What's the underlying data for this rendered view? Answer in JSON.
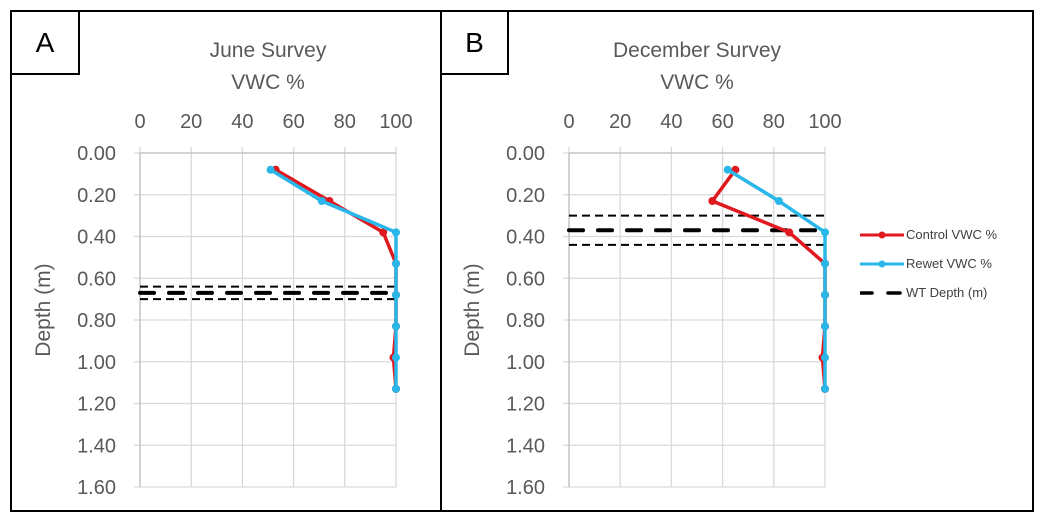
{
  "chart_data": [
    {
      "panel_label": "A",
      "type": "line",
      "title": "June Survey",
      "xlabel": "VWC %",
      "ylabel": "Depth (m)",
      "xlim": [
        0,
        100
      ],
      "ylim": [
        0,
        1.6
      ],
      "y_inverted": true,
      "x_axis_position": "top",
      "grid": true,
      "x_ticks": [
        "0",
        "20",
        "40",
        "60",
        "80",
        "100"
      ],
      "y_ticks": [
        "0.00",
        "0.20",
        "0.40",
        "0.60",
        "0.80",
        "1.00",
        "1.20",
        "1.40",
        "1.60"
      ],
      "series": [
        {
          "name": "Control VWC %",
          "color": "#e0191f",
          "points": [
            [
              53,
              0.08
            ],
            [
              74,
              0.23
            ],
            [
              95,
              0.38
            ],
            [
              100,
              0.53
            ],
            [
              100,
              0.68
            ],
            [
              100,
              0.83
            ],
            [
              99,
              0.98
            ],
            [
              100,
              1.13
            ]
          ]
        },
        {
          "name": "Rewet VWC %",
          "color": "#29b6e8",
          "points": [
            [
              51,
              0.08
            ],
            [
              71,
              0.23
            ],
            [
              100,
              0.38
            ],
            [
              100,
              0.53
            ],
            [
              100,
              0.68
            ],
            [
              100,
              0.83
            ],
            [
              100,
              0.98
            ],
            [
              100,
              1.13
            ]
          ]
        }
      ],
      "wt_depth": {
        "name": "WT Depth (m)",
        "color": "#000000",
        "value": 0.67,
        "lower": 0.64,
        "upper": 0.7
      }
    },
    {
      "panel_label": "B",
      "type": "line",
      "title": "December Survey",
      "xlabel": "VWC %",
      "ylabel": "Depth (m)",
      "xlim": [
        0,
        100
      ],
      "ylim": [
        0,
        1.6
      ],
      "y_inverted": true,
      "x_axis_position": "top",
      "grid": true,
      "x_ticks": [
        "0",
        "20",
        "40",
        "60",
        "80",
        "100"
      ],
      "y_ticks": [
        "0.00",
        "0.20",
        "0.40",
        "0.60",
        "0.80",
        "1.00",
        "1.20",
        "1.40",
        "1.60"
      ],
      "series": [
        {
          "name": "Control VWC %",
          "color": "#e0191f",
          "points": [
            [
              65,
              0.08
            ],
            [
              56,
              0.23
            ],
            [
              86,
              0.38
            ],
            [
              100,
              0.53
            ],
            [
              100,
              0.68
            ],
            [
              100,
              0.83
            ],
            [
              99,
              0.98
            ],
            [
              100,
              1.13
            ]
          ]
        },
        {
          "name": "Rewet VWC %",
          "color": "#29b6e8",
          "points": [
            [
              62,
              0.08
            ],
            [
              82,
              0.23
            ],
            [
              100,
              0.38
            ],
            [
              100,
              0.53
            ],
            [
              100,
              0.68
            ],
            [
              100,
              0.83
            ],
            [
              100,
              0.98
            ],
            [
              100,
              1.13
            ]
          ]
        }
      ],
      "wt_depth": {
        "name": "WT Depth (m)",
        "color": "#000000",
        "value": 0.37,
        "lower": 0.3,
        "upper": 0.44
      }
    }
  ],
  "legend": {
    "position": "right",
    "items": [
      {
        "label": "Control VWC %",
        "color": "#e0191f",
        "style": "line-marker"
      },
      {
        "label": "Rewet VWC %",
        "color": "#29b6e8",
        "style": "line-marker"
      },
      {
        "label": "WT Depth (m)",
        "color": "#000000",
        "style": "dashed"
      }
    ]
  }
}
